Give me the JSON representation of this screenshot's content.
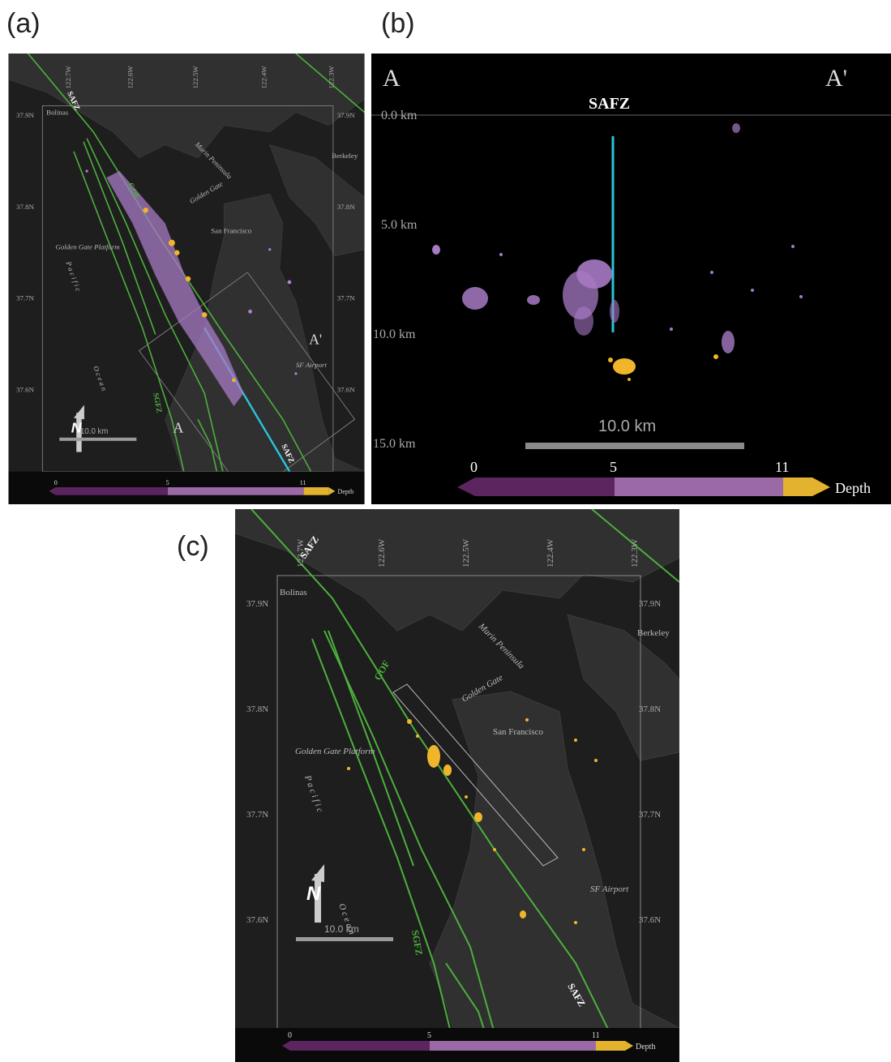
{
  "panel_labels": {
    "a": "(a)",
    "b": "(b)",
    "c": "(c)"
  },
  "map": {
    "lon_ticks": [
      "122.7W",
      "122.6W",
      "122.5W",
      "122.4W",
      "122.3W"
    ],
    "lat_ticks": [
      "37.9N",
      "37.8N",
      "37.7N",
      "37.6N"
    ],
    "places": {
      "bolinas": "Bolinas",
      "berkeley": "Berkeley",
      "marin": "Marin Peninsula",
      "golden_gate": "Golden Gate",
      "san_francisco": "San Francisco",
      "platform": "Golden Gate Platform",
      "sf_airport": "SF Airport",
      "pacific": "P a c i f i c",
      "ocean": "O c e a n"
    },
    "faults": {
      "safz": "SAFZ",
      "gof": "GOF",
      "sgfz": "SGFZ"
    },
    "profile": {
      "a": "A",
      "a_prime": "A'"
    },
    "north": "N",
    "scale": "10.0 km"
  },
  "section": {
    "corner_a": "A",
    "corner_a_prime": "A'",
    "fault": "SAFZ",
    "depth_labels": [
      "0.0 km",
      "5.0 km",
      "10.0 km",
      "15.0 km"
    ],
    "scale": "10.0 km"
  },
  "colorbar": {
    "ticks": [
      "0",
      "5",
      "11"
    ],
    "label": "Depth",
    "colors": {
      "shallow": "#5c2560",
      "mid": "#9b6aa6",
      "deep": "#e3b22e"
    }
  },
  "colors": {
    "fault": "#4caf3c",
    "profile_line": "#29c4d8",
    "shallow_event": "#b07fd0",
    "deep_event": "#f0b52a",
    "terrain": "#2d2d2d",
    "water": "#202020"
  }
}
